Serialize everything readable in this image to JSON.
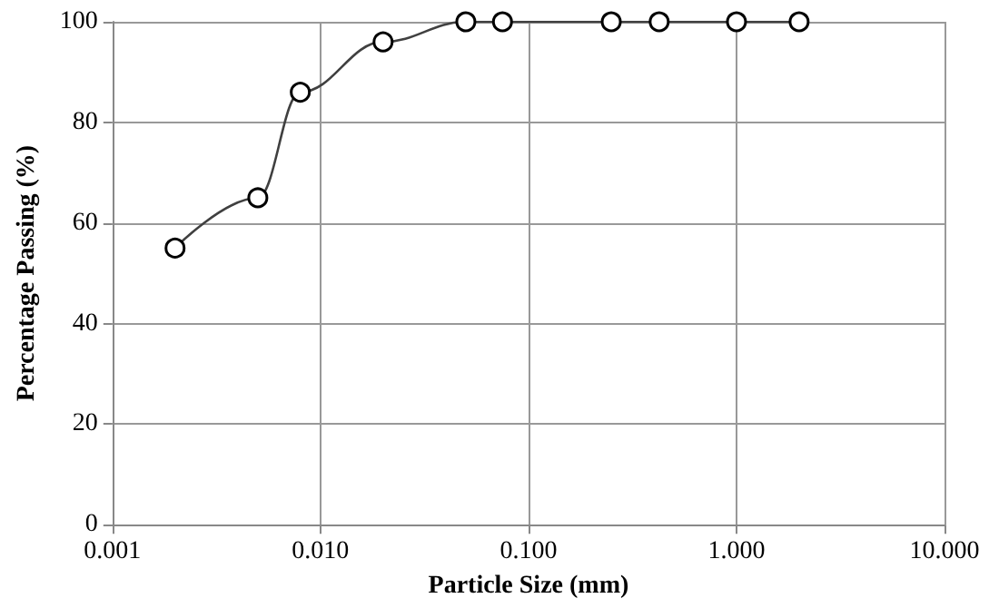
{
  "chart_data": {
    "type": "line",
    "xlabel": "Particle Size (mm)",
    "ylabel": "Percentage Passing (%)",
    "x": [
      0.002,
      0.005,
      0.008,
      0.02,
      0.05,
      0.075,
      0.25,
      0.425,
      1,
      2
    ],
    "series": [
      {
        "color": "#404040",
        "values": [
          55,
          65,
          86,
          96,
          100,
          100,
          100,
          100,
          100,
          100
        ]
      }
    ],
    "log": "x",
    "xlim": [
      0.001,
      10
    ],
    "xticks": [
      {
        "value": 0.001,
        "label": "0.001"
      },
      {
        "value": 0.01,
        "label": "0.010"
      },
      {
        "value": 0.1,
        "label": "0.100"
      },
      {
        "value": 1,
        "label": "1.000"
      },
      {
        "value": 10,
        "label": "10.000"
      }
    ],
    "ylim": [
      0,
      100
    ],
    "yticks": [
      0,
      20,
      40,
      60,
      80,
      100
    ],
    "grid": true,
    "marker": "circle",
    "line_style": "solid"
  }
}
